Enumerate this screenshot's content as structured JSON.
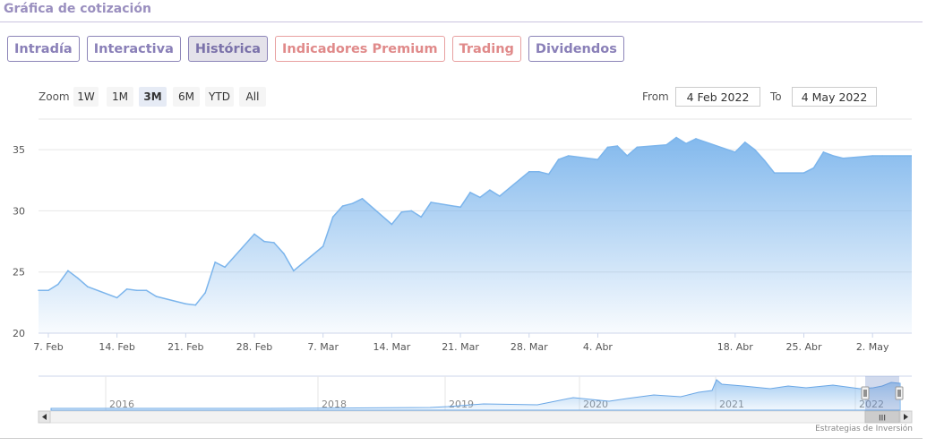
{
  "header": {
    "title": "Gráfica de cotización"
  },
  "tabs": [
    {
      "label": "Intradía",
      "active": false,
      "premium": false
    },
    {
      "label": "Interactiva",
      "active": false,
      "premium": false
    },
    {
      "label": "Histórica",
      "active": true,
      "premium": false
    },
    {
      "label": "Indicadores Premium",
      "active": false,
      "premium": true
    },
    {
      "label": "Trading",
      "active": false,
      "premium": true
    },
    {
      "label": "Dividendos",
      "active": false,
      "premium": false
    }
  ],
  "zoom": {
    "label": "Zoom",
    "buttons": [
      "1W",
      "1M",
      "3M",
      "6M",
      "YTD",
      "All"
    ],
    "selected": "3M"
  },
  "range": {
    "from_label": "From",
    "from_value": "4 Feb 2022",
    "to_label": "To",
    "to_value": "4 May 2022"
  },
  "credit": "Estrategias de Inversión",
  "colors": {
    "line": "#7cb5ec",
    "fill_top": "#7cb5ec",
    "accent": "#8a80b8",
    "premium": "#e08a8a"
  },
  "chart_data": {
    "type": "area",
    "title": "",
    "xlabel": "",
    "ylabel": "",
    "ylim": [
      20,
      37.5
    ],
    "yticks": [
      20,
      25,
      30,
      35
    ],
    "xlim": [
      "2022-02-06",
      "2022-05-06"
    ],
    "xticks": [
      {
        "date": "2022-02-07",
        "label": "7. Feb"
      },
      {
        "date": "2022-02-14",
        "label": "14. Feb"
      },
      {
        "date": "2022-02-21",
        "label": "21. Feb"
      },
      {
        "date": "2022-02-28",
        "label": "28. Feb"
      },
      {
        "date": "2022-03-07",
        "label": "7. Mar"
      },
      {
        "date": "2022-03-14",
        "label": "14. Mar"
      },
      {
        "date": "2022-03-21",
        "label": "21. Mar"
      },
      {
        "date": "2022-03-28",
        "label": "28. Mar"
      },
      {
        "date": "2022-04-04",
        "label": "4. Abr"
      },
      {
        "date": "2022-04-18",
        "label": "18. Abr"
      },
      {
        "date": "2022-04-25",
        "label": "25. Abr"
      },
      {
        "date": "2022-05-02",
        "label": "2. May"
      }
    ],
    "grid": true,
    "series": [
      {
        "values": [
          [
            "2022-02-06",
            23.5
          ],
          [
            "2022-02-07",
            23.5
          ],
          [
            "2022-02-08",
            24.0
          ],
          [
            "2022-02-09",
            25.1
          ],
          [
            "2022-02-10",
            24.5
          ],
          [
            "2022-02-11",
            23.8
          ],
          [
            "2022-02-14",
            22.9
          ],
          [
            "2022-02-15",
            23.6
          ],
          [
            "2022-02-16",
            23.5
          ],
          [
            "2022-02-17",
            23.5
          ],
          [
            "2022-02-18",
            23.0
          ],
          [
            "2022-02-21",
            22.4
          ],
          [
            "2022-02-22",
            22.3
          ],
          [
            "2022-02-23",
            23.3
          ],
          [
            "2022-02-24",
            25.8
          ],
          [
            "2022-02-25",
            25.4
          ],
          [
            "2022-02-28",
            28.1
          ],
          [
            "2022-03-01",
            27.5
          ],
          [
            "2022-03-02",
            27.4
          ],
          [
            "2022-03-03",
            26.5
          ],
          [
            "2022-03-04",
            25.1
          ],
          [
            "2022-03-07",
            27.1
          ],
          [
            "2022-03-08",
            29.5
          ],
          [
            "2022-03-09",
            30.4
          ],
          [
            "2022-03-10",
            30.6
          ],
          [
            "2022-03-11",
            31.0
          ],
          [
            "2022-03-14",
            28.9
          ],
          [
            "2022-03-15",
            29.9
          ],
          [
            "2022-03-16",
            30.0
          ],
          [
            "2022-03-17",
            29.5
          ],
          [
            "2022-03-18",
            30.7
          ],
          [
            "2022-03-21",
            30.3
          ],
          [
            "2022-03-22",
            31.5
          ],
          [
            "2022-03-23",
            31.1
          ],
          [
            "2022-03-24",
            31.7
          ],
          [
            "2022-03-25",
            31.2
          ],
          [
            "2022-03-28",
            33.2
          ],
          [
            "2022-03-29",
            33.2
          ],
          [
            "2022-03-30",
            33.0
          ],
          [
            "2022-03-31",
            34.2
          ],
          [
            "2022-04-01",
            34.5
          ],
          [
            "2022-04-04",
            34.2
          ],
          [
            "2022-04-05",
            35.2
          ],
          [
            "2022-04-06",
            35.3
          ],
          [
            "2022-04-07",
            34.5
          ],
          [
            "2022-04-08",
            35.2
          ],
          [
            "2022-04-11",
            35.4
          ],
          [
            "2022-04-12",
            36.0
          ],
          [
            "2022-04-13",
            35.5
          ],
          [
            "2022-04-14",
            35.9
          ],
          [
            "2022-04-18",
            34.8
          ],
          [
            "2022-04-19",
            35.6
          ],
          [
            "2022-04-20",
            35.0
          ],
          [
            "2022-04-21",
            34.1
          ],
          [
            "2022-04-22",
            33.1
          ],
          [
            "2022-04-25",
            33.1
          ],
          [
            "2022-04-26",
            33.5
          ],
          [
            "2022-04-27",
            34.8
          ],
          [
            "2022-04-28",
            34.5
          ],
          [
            "2022-04-29",
            34.3
          ],
          [
            "2022-05-02",
            34.5
          ],
          [
            "2022-05-03",
            34.5
          ]
        ]
      }
    ],
    "navigator": {
      "years": [
        "2016",
        "2018",
        "2019",
        "2020",
        "2021",
        "2022"
      ],
      "scrollbar_grip": "III"
    }
  }
}
